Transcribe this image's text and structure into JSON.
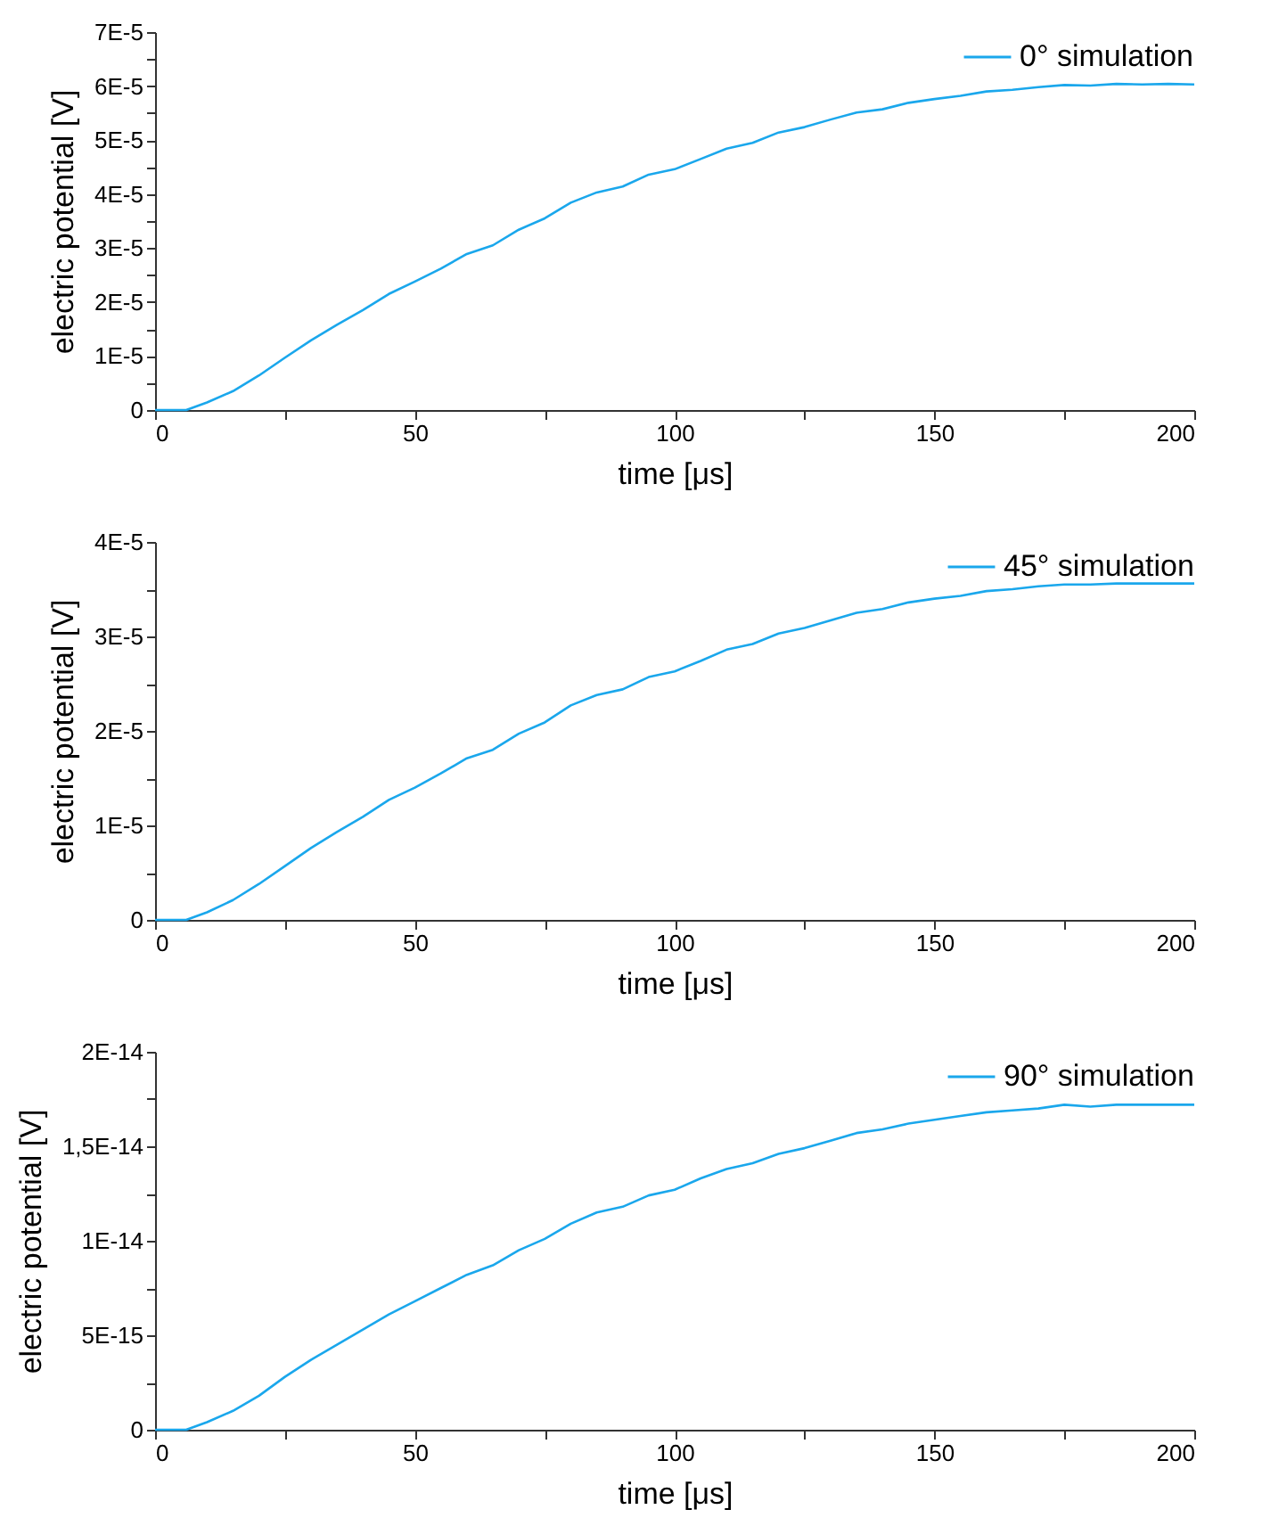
{
  "chart_data": [
    {
      "type": "line",
      "xlabel": "time [μs]",
      "ylabel": "electric potential [V]",
      "legend": "top right",
      "grid": false,
      "marker": "none",
      "line_style": "solid",
      "x": [
        0,
        3,
        6,
        10,
        15,
        20,
        25,
        30,
        35,
        40,
        45,
        50,
        55,
        60,
        65,
        70,
        75,
        80,
        85,
        90,
        95,
        100,
        105,
        110,
        115,
        120,
        125,
        130,
        135,
        140,
        145,
        150,
        155,
        160,
        165,
        170,
        175,
        180,
        185,
        190,
        195,
        200
      ],
      "series": [
        {
          "name": "0° simulation",
          "color": "#1aa7ec",
          "values": [
            0,
            0,
            0,
            1.4e-06,
            3.5e-06,
            6.4e-06,
            9.7e-06,
            1.29e-05,
            1.58e-05,
            1.85e-05,
            2.15e-05,
            2.38e-05,
            2.62e-05,
            2.89e-05,
            3.05e-05,
            3.34e-05,
            3.55e-05,
            3.84e-05,
            4.03e-05,
            4.14e-05,
            4.36e-05,
            4.46e-05,
            4.65e-05,
            4.84e-05,
            4.95e-05,
            5.14e-05,
            5.24e-05,
            5.38e-05,
            5.51e-05,
            5.57e-05,
            5.69e-05,
            5.76e-05,
            5.82e-05,
            5.9e-05,
            5.93e-05,
            5.98e-05,
            6.02e-05,
            6.01e-05,
            6.04e-05,
            6.03e-05,
            6.04e-05,
            6.03e-05
          ]
        }
      ],
      "xlim": [
        0,
        200
      ],
      "xticks": [
        0,
        {
          "value": 25,
          "label": null
        },
        50,
        {
          "value": 75,
          "label": null
        },
        100,
        {
          "value": 125,
          "label": null
        },
        150,
        {
          "value": 175,
          "label": null
        },
        200
      ],
      "ylim": [
        0,
        7e-05
      ],
      "yticks": [
        0,
        {
          "value": 5e-06,
          "label": null
        },
        {
          "value": 1e-05,
          "label": "1E-5"
        },
        {
          "value": 1.5e-05,
          "label": null
        },
        {
          "value": 2e-05,
          "label": "2E-5"
        },
        {
          "value": 2.5e-05,
          "label": null
        },
        {
          "value": 3e-05,
          "label": "3E-5"
        },
        {
          "value": 3.5e-05,
          "label": null
        },
        {
          "value": 4e-05,
          "label": "4E-5"
        },
        {
          "value": 4.5e-05,
          "label": null
        },
        {
          "value": 5e-05,
          "label": "5E-5"
        },
        {
          "value": 5.5e-05,
          "label": null
        },
        {
          "value": 6e-05,
          "label": "6E-5"
        },
        {
          "value": 6.5e-05,
          "label": null
        },
        {
          "value": 7e-05,
          "label": "7E-5"
        }
      ]
    },
    {
      "type": "line",
      "xlabel": "time [μs]",
      "ylabel": "electric potential [V]",
      "legend": "top right",
      "grid": false,
      "marker": "none",
      "line_style": "solid",
      "x": [
        0,
        3,
        6,
        10,
        15,
        20,
        25,
        30,
        35,
        40,
        45,
        50,
        55,
        60,
        65,
        70,
        75,
        80,
        85,
        90,
        95,
        100,
        105,
        110,
        115,
        120,
        125,
        130,
        135,
        140,
        145,
        150,
        155,
        160,
        165,
        170,
        175,
        180,
        185,
        190,
        195,
        200
      ],
      "series": [
        {
          "name": "45° simulation",
          "color": "#1aa7ec",
          "values": [
            0,
            0,
            0,
            8e-07,
            2.1e-06,
            3.8e-06,
            5.7e-06,
            7.6e-06,
            9.3e-06,
            1.09e-05,
            1.27e-05,
            1.4e-05,
            1.55e-05,
            1.71e-05,
            1.8e-05,
            1.97e-05,
            2.09e-05,
            2.27e-05,
            2.38e-05,
            2.44e-05,
            2.57e-05,
            2.63e-05,
            2.74e-05,
            2.86e-05,
            2.92e-05,
            3.03e-05,
            3.09e-05,
            3.17e-05,
            3.25e-05,
            3.29e-05,
            3.36e-05,
            3.4e-05,
            3.43e-05,
            3.48e-05,
            3.5e-05,
            3.53e-05,
            3.55e-05,
            3.55e-05,
            3.56e-05,
            3.56e-05,
            3.56e-05,
            3.56e-05
          ]
        }
      ],
      "xlim": [
        0,
        200
      ],
      "xticks": [
        0,
        {
          "value": 25,
          "label": null
        },
        50,
        {
          "value": 75,
          "label": null
        },
        100,
        {
          "value": 125,
          "label": null
        },
        150,
        {
          "value": 175,
          "label": null
        },
        200
      ],
      "ylim": [
        0,
        4e-05
      ],
      "yticks": [
        0,
        {
          "value": 5e-06,
          "label": null
        },
        {
          "value": 1e-05,
          "label": "1E-5"
        },
        {
          "value": 1.5e-05,
          "label": null
        },
        {
          "value": 2e-05,
          "label": "2E-5"
        },
        {
          "value": 2.5e-05,
          "label": null
        },
        {
          "value": 3e-05,
          "label": "3E-5"
        },
        {
          "value": 3.5e-05,
          "label": null
        },
        {
          "value": 4e-05,
          "label": "4E-5"
        }
      ]
    },
    {
      "type": "line",
      "xlabel": "time [μs]",
      "ylabel": "electric potential [V]",
      "legend": "top right",
      "grid": false,
      "marker": "none",
      "line_style": "solid",
      "x": [
        0,
        3,
        6,
        10,
        15,
        20,
        25,
        30,
        35,
        40,
        45,
        50,
        55,
        60,
        65,
        70,
        75,
        80,
        85,
        90,
        95,
        100,
        105,
        110,
        115,
        120,
        125,
        130,
        135,
        140,
        145,
        150,
        155,
        160,
        165,
        170,
        175,
        180,
        185,
        190,
        195,
        200
      ],
      "series": [
        {
          "name": "90° simulation",
          "color": "#1aa7ec",
          "values": [
            0,
            0,
            0,
            4e-16,
            1e-15,
            1.8e-15,
            2.8e-15,
            3.7e-15,
            4.5e-15,
            5.3e-15,
            6.1e-15,
            6.8e-15,
            7.5e-15,
            8.2e-15,
            8.7e-15,
            9.5e-15,
            1.01e-14,
            1.09e-14,
            1.15e-14,
            1.18e-14,
            1.24e-14,
            1.27e-14,
            1.33e-14,
            1.38e-14,
            1.41e-14,
            1.46e-14,
            1.49e-14,
            1.53e-14,
            1.57e-14,
            1.59e-14,
            1.62e-14,
            1.64e-14,
            1.66e-14,
            1.68e-14,
            1.69e-14,
            1.7e-14,
            1.72e-14,
            1.71e-14,
            1.72e-14,
            1.72e-14,
            1.72e-14,
            1.72e-14
          ]
        }
      ],
      "xlim": [
        0,
        200
      ],
      "xticks": [
        0,
        {
          "value": 25,
          "label": null
        },
        50,
        {
          "value": 75,
          "label": null
        },
        100,
        {
          "value": 125,
          "label": null
        },
        150,
        {
          "value": 175,
          "label": null
        },
        200
      ],
      "ylim": [
        0,
        2e-14
      ],
      "yticks": [
        0,
        {
          "value": 2.5e-15,
          "label": null
        },
        {
          "value": 5e-15,
          "label": "5E-15"
        },
        {
          "value": 7.5e-15,
          "label": null
        },
        {
          "value": 1e-14,
          "label": "1E-14"
        },
        {
          "value": 1.25e-14,
          "label": null
        },
        {
          "value": 1.5e-14,
          "label": "1,5E-14"
        },
        {
          "value": 1.75e-14,
          "label": null
        },
        {
          "value": 2e-14,
          "label": "2E-14"
        }
      ]
    }
  ]
}
